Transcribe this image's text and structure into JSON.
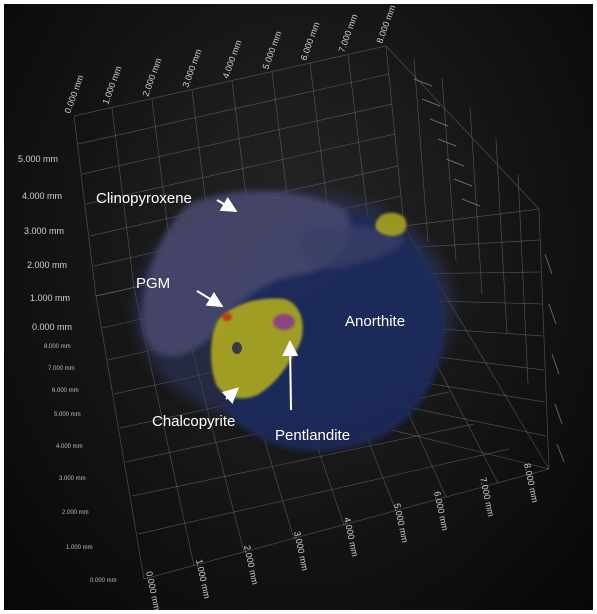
{
  "scene": {
    "x_axis_ticks": [
      "0.000 mm",
      "1.000 mm",
      "2.000 mm",
      "3.000 mm",
      "4.000 mm",
      "5.000 mm",
      "6.000 mm",
      "7.000 mm",
      "8.000 mm"
    ],
    "z_axis_ticks_upper": [
      "5.000 mm",
      "4.000 mm",
      "3.000 mm",
      "2.000 mm",
      "1.000 mm",
      "0.000 mm"
    ],
    "y_axis_ticks_left": [
      "8.000 mm",
      "7.000 mm",
      "6.000 mm",
      "5.000 mm",
      "4.000 mm",
      "3.000 mm",
      "2.000 mm",
      "1.000 mm",
      "0.000 mm"
    ],
    "x_axis_ticks_bottom": [
      "0.000 mm",
      "1.000 mm",
      "2.000 mm",
      "3.000 mm",
      "4.000 mm",
      "5.000 mm",
      "6.000 mm",
      "7.000 mm",
      "8.000 mm"
    ]
  },
  "labels": {
    "clinopyroxene": "Clinopyroxene",
    "pgm": "PGM",
    "anorthite": "Anorthite",
    "chalcopyrite": "Chalcopyrite",
    "pentlandite": "Pentlandite"
  },
  "colors": {
    "anorthite": "#1a2a5c",
    "clinopyroxene": "#4a4a6e",
    "chalcopyrite": "#b8b21a",
    "pentlandite": "#8a3a88",
    "pgm": "#c0301c"
  }
}
